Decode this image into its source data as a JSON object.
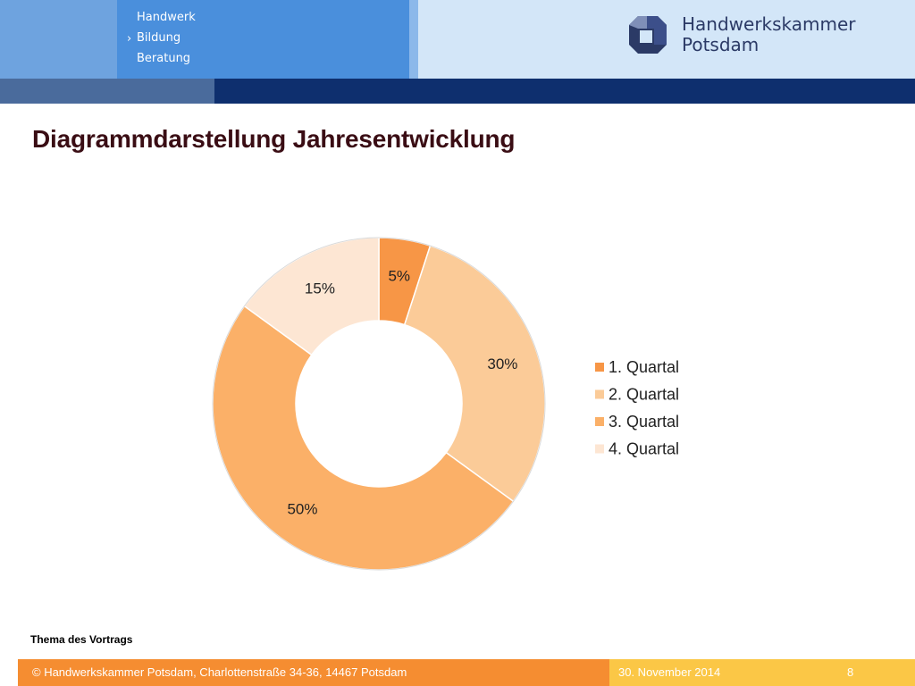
{
  "header": {
    "nav_items": [
      "Handwerk",
      "Bildung",
      "Beratung"
    ],
    "nav_active_marker": "›",
    "logo_line1": "Handwerkskammer",
    "logo_line2": "Potsdam"
  },
  "page_title": "Diagrammdarstellung Jahresentwicklung",
  "chart_data": {
    "type": "pie",
    "variant": "doughnut",
    "categories": [
      "1. Quartal",
      "2. Quartal",
      "3. Quartal",
      "4. Quartal"
    ],
    "values": [
      5,
      30,
      50,
      15
    ],
    "labels": [
      "5%",
      "30%",
      "50%",
      "15%"
    ],
    "colors": [
      "#f79646",
      "#fbcb98",
      "#fbb068",
      "#fde6d3"
    ],
    "legend_position": "right"
  },
  "theme_label": "Thema des Vortrags",
  "footer": {
    "copyright": "© Handwerkskammer Potsdam, Charlottenstraße 34-36, 14467 Potsdam",
    "date": "30. November 2014",
    "page": "8"
  }
}
